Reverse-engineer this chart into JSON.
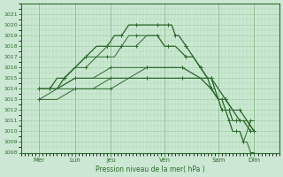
{
  "title": "Pression niveau de la mer( hPa )",
  "bg_color": "#cce8d4",
  "grid_color": "#99cc99",
  "line_color": "#2d6a2d",
  "ylim": [
    1008,
    1022
  ],
  "yticks": [
    1008,
    1009,
    1010,
    1011,
    1012,
    1013,
    1014,
    1015,
    1016,
    1017,
    1018,
    1019,
    1020,
    1021
  ],
  "xtick_labels": [
    "Mer",
    "Lun",
    "Jeu",
    "Ven",
    "Sam",
    "Dim"
  ],
  "xtick_positions": [
    0.5,
    1.5,
    2.5,
    4.0,
    5.5,
    6.5
  ],
  "xlim": [
    0,
    7.2
  ],
  "series": [
    {
      "x": [
        0.5,
        0.65,
        0.8,
        1.0,
        1.2,
        1.5,
        1.8,
        2.1,
        2.4,
        2.6,
        2.8,
        3.0,
        3.2,
        3.5,
        3.8,
        4.0,
        4.1,
        4.2,
        4.3,
        4.4,
        4.6,
        4.8,
        5.0,
        5.2,
        5.3,
        5.5,
        5.6,
        5.7,
        5.8,
        5.9,
        6.0,
        6.1,
        6.2,
        6.3,
        6.4,
        6.5
      ],
      "y": [
        1014,
        1014,
        1014,
        1015,
        1015,
        1016,
        1017,
        1018,
        1018,
        1019,
        1019,
        1020,
        1020,
        1020,
        1020,
        1020,
        1020,
        1020,
        1019,
        1019,
        1018,
        1017,
        1016,
        1015,
        1014,
        1013,
        1012,
        1012,
        1011,
        1010,
        1010,
        1010,
        1009,
        1009,
        1008,
        1008
      ]
    },
    {
      "x": [
        0.5,
        0.65,
        0.8,
        1.0,
        1.2,
        1.5,
        1.8,
        2.1,
        2.4,
        2.6,
        2.8,
        3.0,
        3.2,
        3.5,
        3.8,
        4.0,
        4.1,
        4.2,
        4.3,
        4.4,
        4.6,
        4.8,
        5.0,
        5.2,
        5.3,
        5.5,
        5.6,
        5.7,
        5.8,
        5.9,
        6.0,
        6.1,
        6.2,
        6.3,
        6.4,
        6.5
      ],
      "y": [
        1014,
        1014,
        1014,
        1015,
        1015,
        1016,
        1017,
        1018,
        1018,
        1019,
        1019,
        1020,
        1020,
        1020,
        1020,
        1020,
        1020,
        1020,
        1019,
        1019,
        1018,
        1017,
        1016,
        1015,
        1014,
        1013,
        1012,
        1012,
        1011,
        1010,
        1010,
        1010,
        1009,
        1010,
        1011,
        1011
      ]
    },
    {
      "x": [
        0.5,
        0.65,
        0.8,
        1.0,
        1.2,
        1.5,
        1.8,
        2.1,
        2.4,
        2.6,
        2.8,
        3.0,
        3.2,
        3.5,
        3.8,
        4.0,
        4.1,
        4.3,
        4.6,
        4.8,
        5.0,
        5.2,
        5.3,
        5.5,
        5.6,
        5.7,
        5.8,
        5.9,
        6.0,
        6.2,
        6.4,
        6.5
      ],
      "y": [
        1014,
        1014,
        1014,
        1014,
        1015,
        1016,
        1017,
        1017,
        1018,
        1018,
        1018,
        1019,
        1019,
        1019,
        1019,
        1018,
        1018,
        1018,
        1017,
        1017,
        1016,
        1015,
        1015,
        1013,
        1013,
        1012,
        1012,
        1011,
        1011,
        1011,
        1010,
        1010
      ]
    },
    {
      "x": [
        0.5,
        0.65,
        0.8,
        1.0,
        1.2,
        1.5,
        1.8,
        2.1,
        2.4,
        2.6,
        2.8,
        3.0,
        3.2,
        3.5,
        3.8,
        4.0,
        4.1,
        4.3,
        4.6,
        4.8,
        5.0,
        5.2,
        5.3,
        5.5,
        5.6,
        5.7,
        5.8,
        5.9,
        6.0,
        6.2,
        6.4,
        6.5
      ],
      "y": [
        1014,
        1014,
        1014,
        1014,
        1015,
        1016,
        1016,
        1017,
        1017,
        1017,
        1018,
        1018,
        1018,
        1019,
        1019,
        1018,
        1018,
        1018,
        1017,
        1017,
        1016,
        1015,
        1015,
        1013,
        1013,
        1012,
        1012,
        1011,
        1011,
        1011,
        1010,
        1010
      ]
    },
    {
      "x": [
        0.5,
        1.0,
        1.5,
        2.0,
        2.5,
        3.0,
        3.5,
        4.0,
        4.5,
        5.0,
        5.3,
        5.5,
        5.7,
        5.9,
        6.1,
        6.3,
        6.5
      ],
      "y": [
        1014,
        1014,
        1015,
        1015,
        1016,
        1016,
        1016,
        1016,
        1016,
        1015,
        1015,
        1014,
        1013,
        1012,
        1012,
        1011,
        1010
      ]
    },
    {
      "x": [
        0.5,
        1.0,
        1.5,
        2.0,
        2.5,
        3.0,
        3.5,
        4.0,
        4.5,
        5.0,
        5.3,
        5.5,
        5.7,
        5.9,
        6.1,
        6.3,
        6.5
      ],
      "y": [
        1014,
        1014,
        1015,
        1015,
        1015,
        1015,
        1016,
        1016,
        1016,
        1015,
        1015,
        1014,
        1013,
        1012,
        1012,
        1011,
        1010
      ]
    },
    {
      "x": [
        0.5,
        1.0,
        1.5,
        2.0,
        2.5,
        3.0,
        3.5,
        4.0,
        4.5,
        5.0,
        5.3,
        5.5,
        5.7,
        5.9,
        6.1,
        6.3,
        6.5
      ],
      "y": [
        1013,
        1014,
        1014,
        1014,
        1015,
        1015,
        1015,
        1015,
        1015,
        1015,
        1014,
        1013,
        1013,
        1012,
        1011,
        1011,
        1010
      ]
    },
    {
      "x": [
        0.5,
        1.0,
        1.5,
        2.0,
        2.5,
        3.0,
        3.5,
        4.0,
        4.5,
        5.0,
        5.3,
        5.5,
        5.7,
        5.9,
        6.1,
        6.3,
        6.5
      ],
      "y": [
        1013,
        1013,
        1014,
        1014,
        1014,
        1015,
        1015,
        1015,
        1015,
        1015,
        1014,
        1013,
        1013,
        1012,
        1011,
        1011,
        1010
      ]
    }
  ]
}
